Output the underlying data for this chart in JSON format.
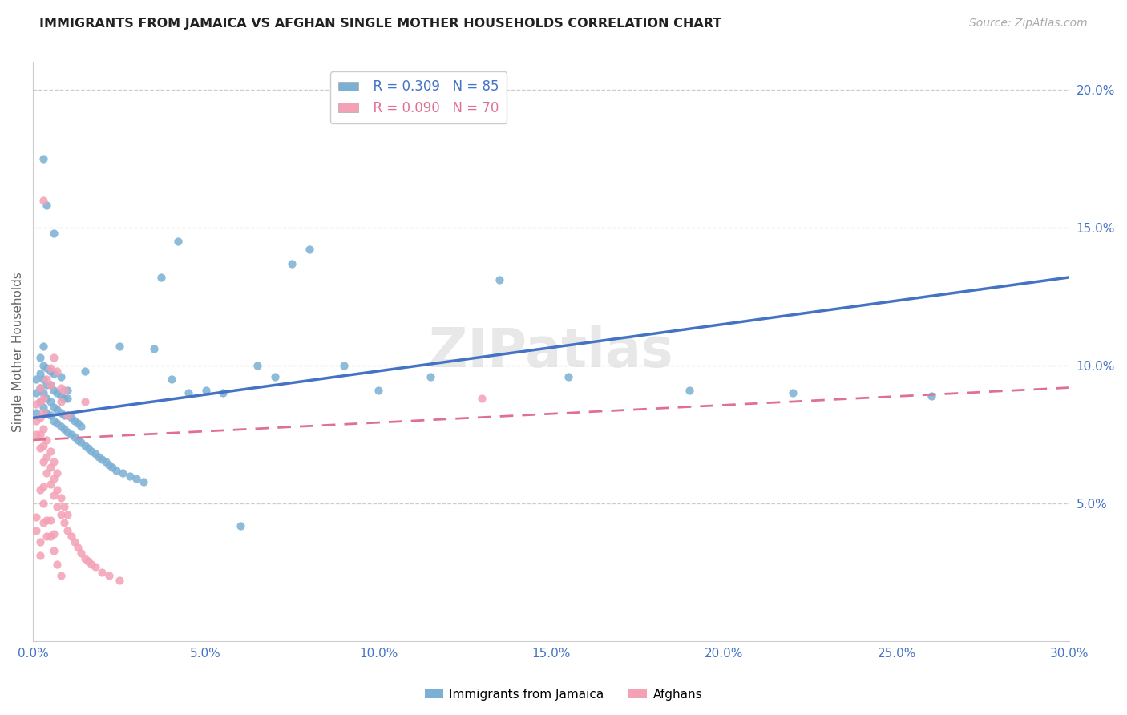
{
  "title": "IMMIGRANTS FROM JAMAICA VS AFGHAN SINGLE MOTHER HOUSEHOLDS CORRELATION CHART",
  "source": "Source: ZipAtlas.com",
  "ylabel": "Single Mother Households",
  "xlim": [
    0.0,
    0.3
  ],
  "ylim": [
    0.0,
    0.21
  ],
  "xtick_vals": [
    0.0,
    0.05,
    0.1,
    0.15,
    0.2,
    0.25,
    0.3
  ],
  "xtick_labels": [
    "0.0%",
    "5.0%",
    "10.0%",
    "15.0%",
    "20.0%",
    "25.0%",
    "30.0%"
  ],
  "ytick_vals": [
    0.05,
    0.1,
    0.15,
    0.2
  ],
  "ytick_labels": [
    "5.0%",
    "10.0%",
    "15.0%",
    "20.0%"
  ],
  "jamaica_color": "#7BAFD4",
  "afghan_color": "#F4A0B5",
  "jamaica_line_color": "#4472C4",
  "afghan_line_color": "#E07090",
  "jamaica_R": 0.309,
  "jamaica_N": 85,
  "afghan_R": 0.09,
  "afghan_N": 70,
  "jamaica_line_x0": 0.0,
  "jamaica_line_y0": 0.081,
  "jamaica_line_x1": 0.3,
  "jamaica_line_y1": 0.132,
  "afghan_line_x0": 0.0,
  "afghan_line_y0": 0.073,
  "afghan_line_x1": 0.3,
  "afghan_line_y1": 0.092,
  "legend_label_jamaica": "Immigrants from Jamaica",
  "legend_label_afghan": "Afghans",
  "watermark": "ZIPatlas",
  "background_color": "#FFFFFF",
  "grid_color": "#CCCCCC",
  "title_color": "#222222",
  "axis_label_color": "#4472C4",
  "jamaica_x": [
    0.001,
    0.001,
    0.001,
    0.002,
    0.002,
    0.002,
    0.002,
    0.003,
    0.003,
    0.003,
    0.003,
    0.003,
    0.004,
    0.004,
    0.004,
    0.004,
    0.005,
    0.005,
    0.005,
    0.005,
    0.006,
    0.006,
    0.006,
    0.006,
    0.007,
    0.007,
    0.007,
    0.008,
    0.008,
    0.008,
    0.009,
    0.009,
    0.009,
    0.01,
    0.01,
    0.01,
    0.011,
    0.011,
    0.012,
    0.012,
    0.013,
    0.013,
    0.014,
    0.014,
    0.015,
    0.015,
    0.016,
    0.017,
    0.018,
    0.019,
    0.02,
    0.021,
    0.022,
    0.023,
    0.024,
    0.025,
    0.026,
    0.028,
    0.03,
    0.032,
    0.035,
    0.037,
    0.04,
    0.042,
    0.045,
    0.05,
    0.055,
    0.06,
    0.065,
    0.07,
    0.075,
    0.08,
    0.09,
    0.1,
    0.115,
    0.135,
    0.155,
    0.19,
    0.22,
    0.26,
    0.003,
    0.004,
    0.006,
    0.008,
    0.01
  ],
  "jamaica_y": [
    0.083,
    0.09,
    0.095,
    0.087,
    0.092,
    0.097,
    0.103,
    0.085,
    0.09,
    0.095,
    0.1,
    0.107,
    0.083,
    0.088,
    0.093,
    0.099,
    0.082,
    0.087,
    0.093,
    0.098,
    0.08,
    0.085,
    0.091,
    0.097,
    0.079,
    0.084,
    0.09,
    0.078,
    0.083,
    0.089,
    0.077,
    0.082,
    0.088,
    0.076,
    0.082,
    0.088,
    0.075,
    0.081,
    0.074,
    0.08,
    0.073,
    0.079,
    0.072,
    0.078,
    0.071,
    0.098,
    0.07,
    0.069,
    0.068,
    0.067,
    0.066,
    0.065,
    0.064,
    0.063,
    0.062,
    0.107,
    0.061,
    0.06,
    0.059,
    0.058,
    0.106,
    0.132,
    0.095,
    0.145,
    0.09,
    0.091,
    0.09,
    0.042,
    0.1,
    0.096,
    0.137,
    0.142,
    0.1,
    0.091,
    0.096,
    0.131,
    0.096,
    0.091,
    0.09,
    0.089,
    0.175,
    0.158,
    0.148,
    0.096,
    0.091
  ],
  "afghan_x": [
    0.001,
    0.001,
    0.001,
    0.002,
    0.002,
    0.002,
    0.002,
    0.003,
    0.003,
    0.003,
    0.003,
    0.004,
    0.004,
    0.004,
    0.005,
    0.005,
    0.005,
    0.006,
    0.006,
    0.006,
    0.007,
    0.007,
    0.007,
    0.008,
    0.008,
    0.009,
    0.009,
    0.01,
    0.01,
    0.011,
    0.012,
    0.013,
    0.014,
    0.015,
    0.016,
    0.017,
    0.018,
    0.02,
    0.022,
    0.025,
    0.002,
    0.003,
    0.004,
    0.005,
    0.005,
    0.006,
    0.007,
    0.008,
    0.008,
    0.009,
    0.002,
    0.003,
    0.003,
    0.004,
    0.005,
    0.005,
    0.006,
    0.006,
    0.007,
    0.008,
    0.001,
    0.001,
    0.002,
    0.002,
    0.003,
    0.003,
    0.004,
    0.01,
    0.015,
    0.13
  ],
  "afghan_y": [
    0.075,
    0.08,
    0.086,
    0.07,
    0.075,
    0.081,
    0.087,
    0.065,
    0.071,
    0.077,
    0.083,
    0.061,
    0.067,
    0.073,
    0.057,
    0.063,
    0.069,
    0.053,
    0.059,
    0.065,
    0.049,
    0.055,
    0.061,
    0.046,
    0.052,
    0.043,
    0.049,
    0.04,
    0.046,
    0.038,
    0.036,
    0.034,
    0.032,
    0.03,
    0.029,
    0.028,
    0.027,
    0.025,
    0.024,
    0.022,
    0.092,
    0.088,
    0.095,
    0.099,
    0.093,
    0.103,
    0.098,
    0.092,
    0.087,
    0.091,
    0.055,
    0.05,
    0.056,
    0.044,
    0.038,
    0.044,
    0.033,
    0.039,
    0.028,
    0.024,
    0.045,
    0.04,
    0.036,
    0.031,
    0.16,
    0.043,
    0.038,
    0.082,
    0.087,
    0.088
  ]
}
